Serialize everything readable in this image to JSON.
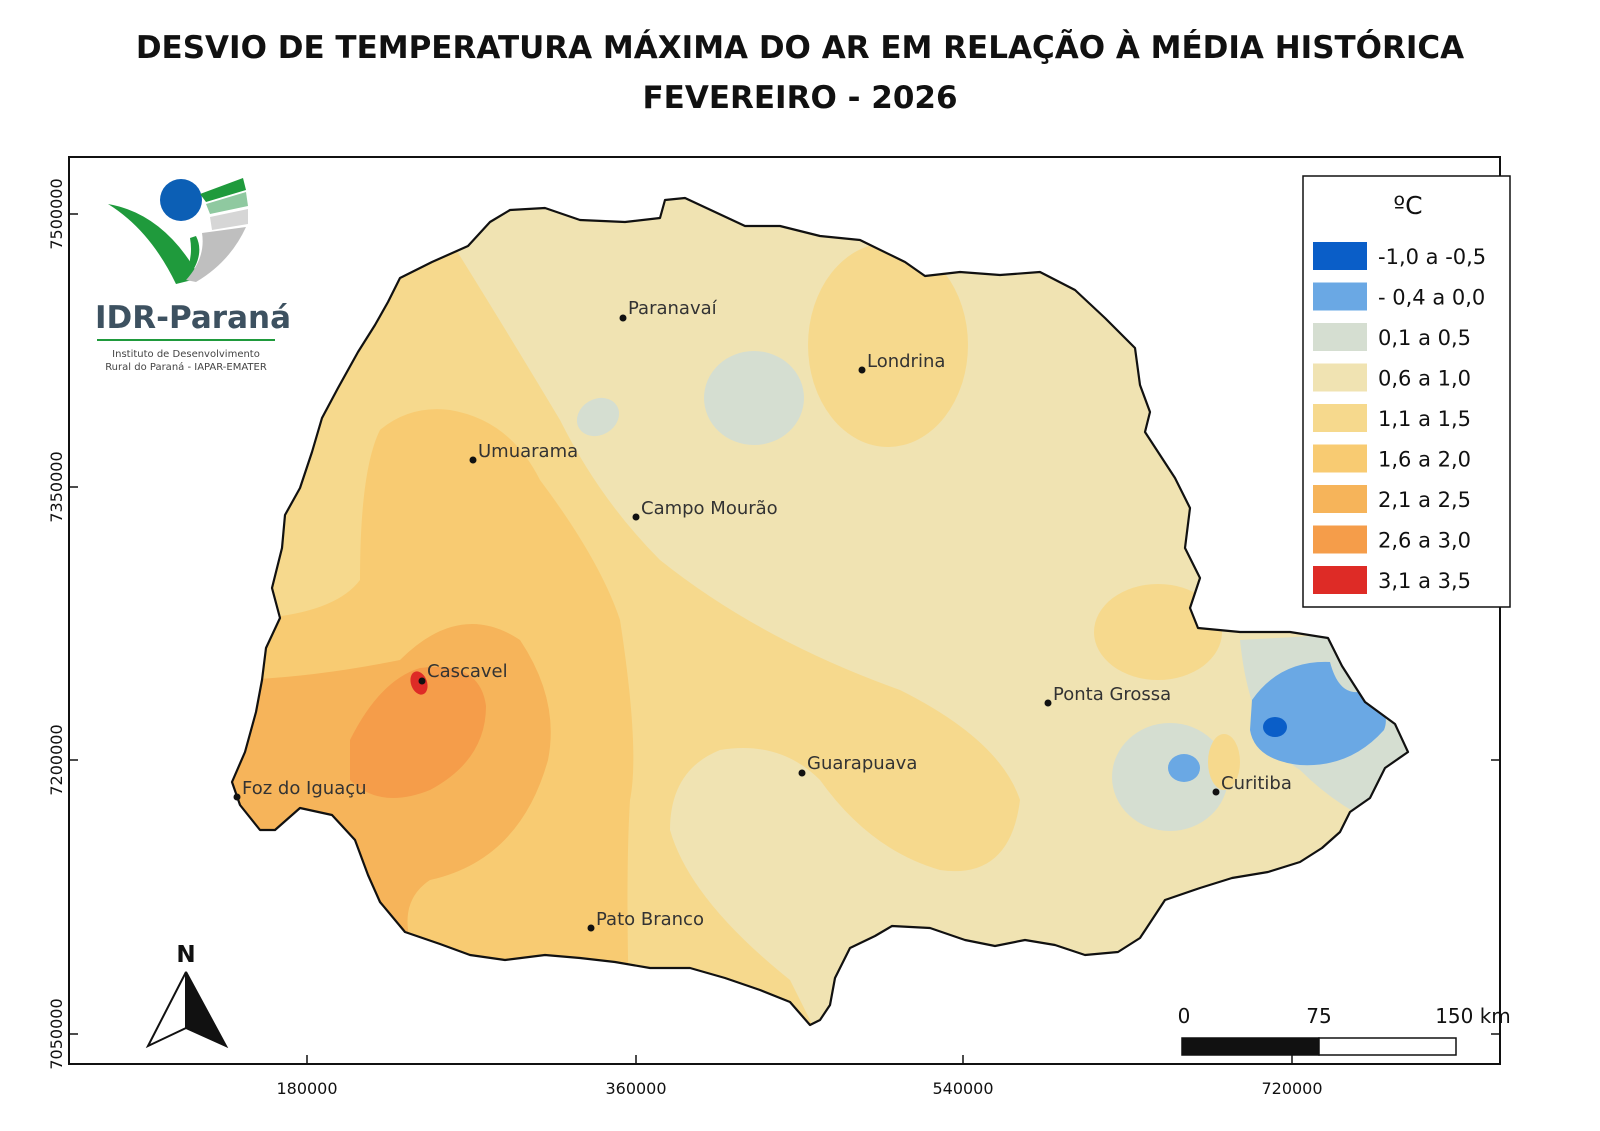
{
  "title": {
    "line1": "DESVIO DE TEMPERATURA MÁXIMA DO AR EM RELAÇÃO À MÉDIA HISTÓRICA",
    "line2": "FEVEREIRO - 2026"
  },
  "legend": {
    "unit": "ºC",
    "classes": [
      {
        "label": "-1,0 a -0,5",
        "color": "#0a5ec8"
      },
      {
        "label": "- 0,4 a 0,0",
        "color": "#6aa8e4"
      },
      {
        "label": "0,1 a 0,5",
        "color": "#d5ded1"
      },
      {
        "label": "0,6 a 1,0",
        "color": "#f0e3b2"
      },
      {
        "label": "1,1 a 1,5",
        "color": "#f6d98d"
      },
      {
        "label": "1,6 a 2,0",
        "color": "#f8cb72"
      },
      {
        "label": "2,1 a 2,5",
        "color": "#f6b45a"
      },
      {
        "label": "2,6 a 3,0",
        "color": "#f59d4a"
      },
      {
        "label": "3,1 a 3,5",
        "color": "#de2b26"
      }
    ]
  },
  "cities": [
    {
      "name": "Paranavaí"
    },
    {
      "name": "Londrina"
    },
    {
      "name": "Umuarama"
    },
    {
      "name": "Campo Mourão"
    },
    {
      "name": "Cascavel"
    },
    {
      "name": "Ponta Grossa"
    },
    {
      "name": "Guarapuava"
    },
    {
      "name": "Curitiba"
    },
    {
      "name": "Foz do Iguaçu"
    },
    {
      "name": "Pato Branco"
    }
  ],
  "axes": {
    "x_ticks": [
      "180000",
      "360000",
      "540000",
      "720000"
    ],
    "y_ticks": [
      "7500000",
      "7350000",
      "7200000",
      "7050000"
    ]
  },
  "scale_bar": {
    "labels": [
      "0",
      "75",
      "150 km"
    ]
  },
  "north_arrow": {
    "label": "N"
  },
  "logo": {
    "name": "IDR-Paraná",
    "subtitle_line1": "Instituto de Desenvolvimento",
    "subtitle_line2": "Rural do Paraná - IAPAR-EMATER"
  }
}
